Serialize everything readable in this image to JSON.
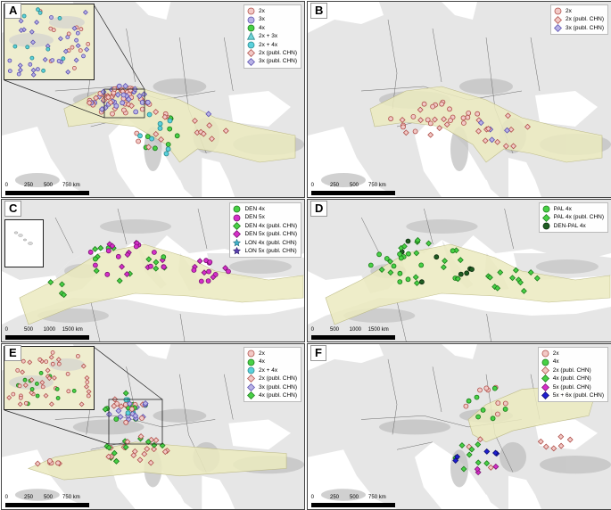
{
  "panels": [
    {
      "id": "A",
      "letter": "A",
      "legend": [
        {
          "label": "2x",
          "shape": "circle",
          "fill": "#f2c9c6",
          "stroke": "#b0504a"
        },
        {
          "label": "3x",
          "shape": "circle",
          "fill": "#b8b2e6",
          "stroke": "#5a4fb0"
        },
        {
          "label": "4x",
          "shape": "circle",
          "fill": "#48d146",
          "stroke": "#1d7a1b"
        },
        {
          "label": "2x + 3x",
          "shape": "triangle",
          "fill": "#6fd3d6",
          "stroke": "#2a8a8c"
        },
        {
          "label": "2x + 4x",
          "shape": "circle",
          "fill": "#5ad0dc",
          "stroke": "#2a8a8c"
        },
        {
          "label": "2x (publ. CHN)",
          "shape": "diamond",
          "fill": "#f2c9c6",
          "stroke": "#b0504a"
        },
        {
          "label": "3x (publ. CHN)",
          "shape": "diamond",
          "fill": "#b8b2e6",
          "stroke": "#5a4fb0"
        }
      ],
      "scale": [
        "0",
        "250",
        "500",
        "750 km"
      ]
    },
    {
      "id": "B",
      "letter": "B",
      "legend": [
        {
          "label": "2x",
          "shape": "circle",
          "fill": "#f2c9c6",
          "stroke": "#b0504a"
        },
        {
          "label": "2x (publ. CHN)",
          "shape": "diamond",
          "fill": "#f2c9c6",
          "stroke": "#b0504a"
        },
        {
          "label": "3x (publ. CHN)",
          "shape": "diamond",
          "fill": "#b8b2e6",
          "stroke": "#5a4fb0"
        }
      ],
      "scale": [
        "0",
        "250",
        "500",
        "750 km"
      ]
    },
    {
      "id": "C",
      "letter": "C",
      "legend": [
        {
          "label": "DEN 4x",
          "shape": "circle",
          "fill": "#48d146",
          "stroke": "#1d7a1b"
        },
        {
          "label": "DEN 5x",
          "shape": "circle",
          "fill": "#d62ec9",
          "stroke": "#7a1472"
        },
        {
          "label": "DEN 4x (publ. CHN)",
          "shape": "diamond",
          "fill": "#48d146",
          "stroke": "#1d7a1b"
        },
        {
          "label": "DEN 5x (publ. CHN)",
          "shape": "diamond",
          "fill": "#d62ec9",
          "stroke": "#7a1472"
        },
        {
          "label": "LON 4x (publ. CHN)",
          "shape": "star",
          "fill": "#3fb0c8",
          "stroke": "#1d6a7a"
        },
        {
          "label": "LON 5x (publ. CHN)",
          "shape": "star",
          "fill": "#5a3fb0",
          "stroke": "#2a1d6a"
        }
      ],
      "scale": [
        "0",
        "500",
        "1000",
        "1500 km"
      ]
    },
    {
      "id": "D",
      "letter": "D",
      "legend": [
        {
          "label": "PAL 4x",
          "shape": "circle",
          "fill": "#48d146",
          "stroke": "#1d7a1b"
        },
        {
          "label": "PAL 4x (publ. CHN)",
          "shape": "diamond",
          "fill": "#48d146",
          "stroke": "#1d7a1b"
        },
        {
          "label": "DEN-PAL 4x",
          "shape": "circle",
          "fill": "#1e5c22",
          "stroke": "#0b2a0d"
        }
      ],
      "scale": [
        "0",
        "500",
        "1000",
        "1500 km"
      ]
    },
    {
      "id": "E",
      "letter": "E",
      "legend": [
        {
          "label": "2x",
          "shape": "circle",
          "fill": "#f2c9c6",
          "stroke": "#b0504a"
        },
        {
          "label": "4x",
          "shape": "circle",
          "fill": "#48d146",
          "stroke": "#1d7a1b"
        },
        {
          "label": "2x + 4x",
          "shape": "circle",
          "fill": "#5ad0dc",
          "stroke": "#2a8a8c"
        },
        {
          "label": "2x (publ. CHN)",
          "shape": "diamond",
          "fill": "#f2c9c6",
          "stroke": "#b0504a"
        },
        {
          "label": "3x (publ. CHN)",
          "shape": "diamond",
          "fill": "#b8b2e6",
          "stroke": "#5a4fb0"
        },
        {
          "label": "4x (publ. CHN)",
          "shape": "diamond",
          "fill": "#48d146",
          "stroke": "#1d7a1b"
        }
      ],
      "scale": [
        "0",
        "250",
        "500",
        "750 km"
      ]
    },
    {
      "id": "F",
      "letter": "F",
      "legend": [
        {
          "label": "2x",
          "shape": "circle",
          "fill": "#f2c9c6",
          "stroke": "#b0504a"
        },
        {
          "label": "4x",
          "shape": "circle",
          "fill": "#48d146",
          "stroke": "#1d7a1b"
        },
        {
          "label": "2x (publ. CHN)",
          "shape": "diamond",
          "fill": "#f2c9c6",
          "stroke": "#b0504a"
        },
        {
          "label": "4x (publ. CHN)",
          "shape": "diamond",
          "fill": "#48d146",
          "stroke": "#1d7a1b"
        },
        {
          "label": "5x (publ. CHN)",
          "shape": "diamond",
          "fill": "#d62ec9",
          "stroke": "#7a1472"
        },
        {
          "label": "5x + 6x (publ. CHN)",
          "shape": "diamond",
          "fill": "#1f1fd0",
          "stroke": "#0a0a70"
        }
      ],
      "scale": [
        "0",
        "250",
        "500",
        "750 km"
      ]
    }
  ],
  "colors": {
    "sea": "#ffffff",
    "land": "#e6e6e6",
    "relief": "#bdbdbd",
    "range": "#ecebc0",
    "range_edge": "#b7b47a",
    "borders": "#6a6a6a"
  }
}
